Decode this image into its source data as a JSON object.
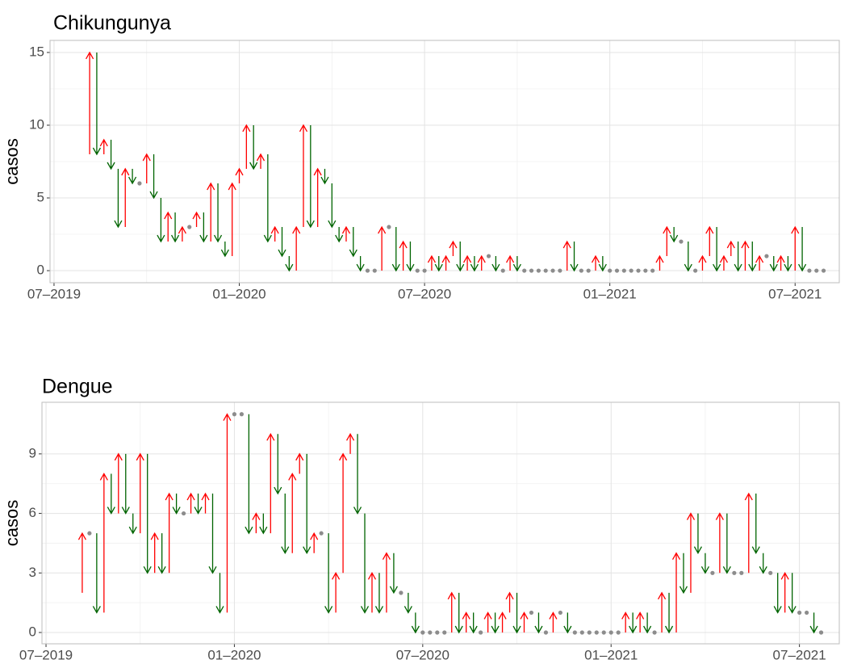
{
  "chart_data": [
    {
      "type": "arrow",
      "title": "Chikungunya",
      "y_label": "casos",
      "x": [
        4,
        5,
        6,
        7,
        8,
        9,
        10,
        11,
        12,
        13,
        14,
        15,
        16,
        17,
        18,
        19,
        20,
        21,
        22,
        23,
        24,
        25,
        26,
        27,
        28,
        29,
        30,
        31,
        32,
        33,
        34,
        35,
        36,
        37,
        38,
        39,
        40,
        41,
        42,
        43,
        44,
        45,
        46,
        47,
        48,
        49,
        50,
        51,
        52,
        53,
        54,
        55,
        56,
        57,
        58,
        59,
        60,
        61,
        62,
        63,
        64,
        65,
        66,
        67,
        68,
        69,
        70,
        71,
        72,
        73,
        74,
        75,
        76,
        77,
        78,
        79,
        80,
        81,
        82,
        83,
        84,
        85,
        86,
        87,
        88,
        89,
        90,
        91,
        92,
        93,
        94,
        95,
        96,
        97,
        98,
        99,
        100,
        101,
        102,
        103,
        104,
        105,
        106,
        107,
        108
      ],
      "values": [
        8,
        15,
        8,
        9,
        7,
        3,
        7,
        6,
        6,
        8,
        5,
        2,
        4,
        2,
        3,
        3,
        4,
        2,
        6,
        2,
        1,
        6,
        7,
        10,
        7,
        8,
        2,
        3,
        1,
        0,
        3,
        10,
        3,
        7,
        6,
        3,
        2,
        3,
        1,
        0,
        0,
        0,
        3,
        3,
        0,
        2,
        0,
        0,
        0,
        1,
        0,
        1,
        2,
        0,
        1,
        0,
        1,
        1,
        0,
        0,
        1,
        0,
        0,
        0,
        0,
        0,
        0,
        0,
        2,
        0,
        0,
        0,
        1,
        0,
        0,
        0,
        0,
        0,
        0,
        0,
        0,
        1,
        3,
        2,
        2,
        0,
        0,
        1,
        3,
        0,
        1,
        2,
        0,
        2,
        0,
        1,
        1,
        0,
        1,
        0,
        3,
        0,
        0,
        0,
        0
      ],
      "up_color": "#ff0000",
      "down_color": "#006400",
      "same_color": "#8c8c8c",
      "xlim": [
        -0.56,
        110.2
      ],
      "xticks": [
        {
          "value": 0,
          "label": "07–2019"
        },
        {
          "value": 26,
          "label": "01–2020"
        },
        {
          "value": 52,
          "label": "07–2020"
        },
        {
          "value": 78,
          "label": "01–2021"
        },
        {
          "value": 104,
          "label": "07–2021"
        }
      ],
      "ylim": [
        -0.83,
        15.83
      ],
      "yticks": [
        0,
        5,
        10,
        15
      ],
      "grid": true
    },
    {
      "type": "arrow",
      "title": "Dengue",
      "y_label": "casos",
      "x": [
        4,
        5,
        6,
        7,
        8,
        9,
        10,
        11,
        12,
        13,
        14,
        15,
        16,
        17,
        18,
        19,
        20,
        21,
        22,
        23,
        24,
        25,
        26,
        27,
        28,
        29,
        30,
        31,
        32,
        33,
        34,
        35,
        36,
        37,
        38,
        39,
        40,
        41,
        42,
        43,
        44,
        45,
        46,
        47,
        48,
        49,
        50,
        51,
        52,
        53,
        54,
        55,
        56,
        57,
        58,
        59,
        60,
        61,
        62,
        63,
        64,
        65,
        66,
        67,
        68,
        69,
        70,
        71,
        72,
        73,
        74,
        75,
        76,
        77,
        78,
        79,
        80,
        81,
        82,
        83,
        84,
        85,
        86,
        87,
        88,
        89,
        90,
        91,
        92,
        93,
        94,
        95,
        96,
        97,
        98,
        99,
        100,
        101,
        102,
        103,
        104,
        105,
        106,
        107
      ],
      "values": [
        2,
        5,
        5,
        1,
        8,
        6,
        9,
        6,
        5,
        9,
        3,
        5,
        3,
        7,
        6,
        6,
        7,
        6,
        7,
        3,
        1,
        11,
        11,
        11,
        5,
        6,
        5,
        10,
        7,
        4,
        8,
        9,
        4,
        5,
        5,
        1,
        3,
        9,
        10,
        6,
        1,
        3,
        1,
        4,
        2,
        2,
        1,
        0,
        0,
        0,
        0,
        0,
        2,
        0,
        1,
        0,
        0,
        1,
        0,
        1,
        2,
        0,
        1,
        1,
        0,
        0,
        1,
        1,
        0,
        0,
        0,
        0,
        0,
        0,
        0,
        0,
        1,
        0,
        1,
        0,
        0,
        2,
        0,
        4,
        2,
        6,
        4,
        3,
        3,
        6,
        3,
        3,
        3,
        7,
        4,
        3,
        3,
        1,
        3,
        1,
        1,
        1,
        0,
        0
      ],
      "up_color": "#ff0000",
      "down_color": "#006400",
      "same_color": "#8c8c8c",
      "xlim": [
        -0.56,
        109.5
      ],
      "xticks": [
        {
          "value": 0,
          "label": "07–2019"
        },
        {
          "value": 26,
          "label": "01–2020"
        },
        {
          "value": 52,
          "label": "07–2020"
        },
        {
          "value": 78,
          "label": "01–2021"
        },
        {
          "value": 104,
          "label": "07–2021"
        }
      ],
      "ylim": [
        -0.57,
        11.6
      ],
      "yticks": [
        0,
        3,
        6,
        9
      ],
      "grid": true
    }
  ]
}
